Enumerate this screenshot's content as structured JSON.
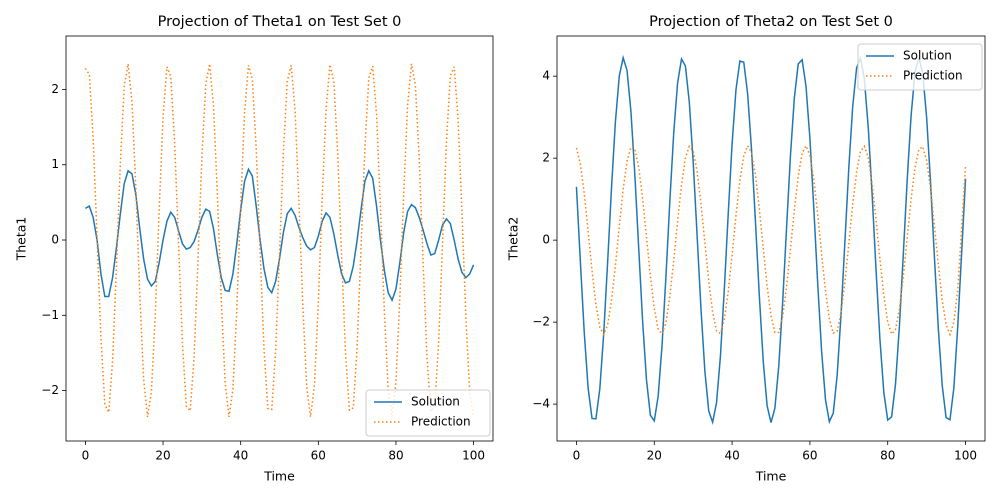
{
  "chart_data": [
    {
      "type": "line",
      "title": "Projection of Theta1 on Test Set 0",
      "x_label": "Time",
      "y_label": "Theta1",
      "x": [
        0,
        1,
        2,
        3,
        4,
        5,
        6,
        7,
        8,
        9,
        10,
        11,
        12,
        13,
        14,
        15,
        16,
        17,
        18,
        19,
        20,
        21,
        22,
        23,
        24,
        25,
        26,
        27,
        28,
        29,
        30,
        31,
        32,
        33,
        34,
        35,
        36,
        37,
        38,
        39,
        40,
        41,
        42,
        43,
        44,
        45,
        46,
        47,
        48,
        49,
        50,
        51,
        52,
        53,
        54,
        55,
        56,
        57,
        58,
        59,
        60,
        61,
        62,
        63,
        64,
        65,
        66,
        67,
        68,
        69,
        70,
        71,
        72,
        73,
        74,
        75,
        76,
        77,
        78,
        79,
        80,
        81,
        82,
        83,
        84,
        85,
        86,
        87,
        88,
        89,
        90,
        91,
        92,
        93,
        94,
        95,
        96,
        97,
        98,
        99,
        100
      ],
      "series": [
        {
          "name": "Solution",
          "color": "#1f77b4",
          "linestyle": "solid",
          "values": [
            0.42,
            0.45,
            0.3,
            0.0,
            -0.45,
            -0.75,
            -0.75,
            -0.5,
            -0.1,
            0.35,
            0.75,
            0.92,
            0.88,
            0.6,
            0.15,
            -0.25,
            -0.52,
            -0.61,
            -0.55,
            -0.3,
            0.0,
            0.25,
            0.37,
            0.3,
            0.12,
            -0.05,
            -0.12,
            -0.1,
            -0.02,
            0.13,
            0.3,
            0.41,
            0.38,
            0.15,
            -0.2,
            -0.5,
            -0.67,
            -0.68,
            -0.45,
            -0.05,
            0.4,
            0.78,
            0.94,
            0.85,
            0.45,
            0.0,
            -0.38,
            -0.63,
            -0.7,
            -0.55,
            -0.25,
            0.1,
            0.35,
            0.42,
            0.33,
            0.17,
            0.03,
            -0.08,
            -0.13,
            -0.1,
            0.05,
            0.25,
            0.36,
            0.3,
            0.08,
            -0.2,
            -0.45,
            -0.57,
            -0.55,
            -0.35,
            0.0,
            0.4,
            0.78,
            0.92,
            0.82,
            0.45,
            0.0,
            -0.4,
            -0.7,
            -0.8,
            -0.65,
            -0.3,
            0.1,
            0.38,
            0.47,
            0.43,
            0.3,
            0.13,
            -0.05,
            -0.2,
            -0.18,
            0.0,
            0.2,
            0.28,
            0.22,
            0.0,
            -0.25,
            -0.43,
            -0.5,
            -0.45,
            -0.33
          ]
        },
        {
          "name": "Prediction",
          "color": "#ff7f0e",
          "linestyle": "dotted",
          "values": [
            2.28,
            2.2,
            1.35,
            0.03,
            -1.31,
            -2.18,
            -2.29,
            -1.61,
            -0.36,
            1.02,
            2.04,
            2.34,
            1.83,
            0.68,
            -0.71,
            -1.85,
            -2.35,
            -2.02,
            -0.99,
            0.39,
            1.63,
            2.3,
            2.17,
            1.28,
            -0.06,
            -1.37,
            -2.21,
            -2.27,
            -1.55,
            -0.28,
            1.09,
            2.07,
            2.34,
            1.78,
            0.6,
            -0.79,
            -1.9,
            -2.35,
            -1.98,
            -0.92,
            0.47,
            1.69,
            2.32,
            2.14,
            1.21,
            -0.14,
            -1.44,
            -2.24,
            -2.25,
            -1.48,
            -0.19,
            1.16,
            2.11,
            2.32,
            1.73,
            0.52,
            -0.86,
            -1.95,
            -2.35,
            -1.93,
            -0.84,
            0.55,
            1.74,
            2.33,
            2.1,
            1.14,
            -0.22,
            -1.5,
            -2.26,
            -2.23,
            -1.42,
            -0.11,
            1.23,
            2.15,
            2.31,
            1.67,
            0.44,
            -0.94,
            -1.99,
            -2.35,
            -1.88,
            -0.76,
            0.62,
            1.79,
            2.34,
            2.06,
            1.07,
            -0.3,
            -1.56,
            -2.28,
            -2.2,
            -1.36,
            -0.03,
            1.3,
            2.18,
            2.3,
            1.61,
            0.36,
            -1.01,
            -2.03,
            -2.34
          ]
        }
      ],
      "xlim": [
        -5,
        105
      ],
      "ylim": [
        -2.67,
        2.71
      ],
      "xticks": [
        0,
        20,
        40,
        60,
        80,
        100
      ],
      "yticks": [
        {
          "value": -2,
          "label": "−2"
        },
        {
          "value": -1,
          "label": "−1"
        },
        0,
        1,
        2
      ],
      "grid": false,
      "legend": "lower right"
    },
    {
      "type": "line",
      "title": "Projection of Theta2 on Test Set 0",
      "x_label": "Time",
      "y_label": "Theta2",
      "x": [
        0,
        1,
        2,
        3,
        4,
        5,
        6,
        7,
        8,
        9,
        10,
        11,
        12,
        13,
        14,
        15,
        16,
        17,
        18,
        19,
        20,
        21,
        22,
        23,
        24,
        25,
        26,
        27,
        28,
        29,
        30,
        31,
        32,
        33,
        34,
        35,
        36,
        37,
        38,
        39,
        40,
        41,
        42,
        43,
        44,
        45,
        46,
        47,
        48,
        49,
        50,
        51,
        52,
        53,
        54,
        55,
        56,
        57,
        58,
        59,
        60,
        61,
        62,
        63,
        64,
        65,
        66,
        67,
        68,
        69,
        70,
        71,
        72,
        73,
        74,
        75,
        76,
        77,
        78,
        79,
        80,
        81,
        82,
        83,
        84,
        85,
        86,
        87,
        88,
        89,
        90,
        91,
        92,
        93,
        94,
        95,
        96,
        97,
        98,
        99,
        100
      ],
      "series": [
        {
          "name": "Solution",
          "color": "#1f77b4",
          "linestyle": "solid",
          "values": [
            1.3,
            -0.52,
            -2.25,
            -3.61,
            -4.35,
            -4.36,
            -3.63,
            -2.29,
            -0.56,
            1.26,
            2.87,
            4.0,
            4.45,
            4.14,
            3.14,
            1.61,
            -0.2,
            -1.97,
            -3.41,
            -4.27,
            -4.41,
            -3.81,
            -2.57,
            -0.88,
            0.95,
            2.62,
            3.84,
            4.42,
            4.25,
            3.37,
            1.91,
            0.13,
            -1.67,
            -3.19,
            -4.17,
            -4.44,
            -3.97,
            -2.83,
            -1.2,
            0.63,
            2.35,
            3.67,
            4.37,
            4.34,
            3.57,
            2.2,
            0.46,
            -1.36,
            -2.95,
            -4.04,
            -4.45,
            -4.1,
            -3.07,
            -1.51,
            0.3,
            2.06,
            3.47,
            4.3,
            4.4,
            3.75,
            2.48,
            0.78,
            -1.05,
            -2.7,
            -3.89,
            -4.43,
            -4.22,
            -3.3,
            -1.81,
            -0.03,
            1.77,
            3.26,
            4.2,
            4.44,
            3.92,
            2.74,
            1.1,
            -0.73,
            -2.43,
            -3.72,
            -4.39,
            -4.31,
            -3.51,
            -2.1,
            -0.35,
            1.46,
            3.03,
            4.08,
            4.45,
            4.06,
            2.99,
            1.41,
            -0.41,
            -2.15,
            -3.54,
            -4.33,
            -4.38,
            -3.6,
            -2.1,
            -0.3,
            1.5
          ]
        },
        {
          "name": "Prediction",
          "color": "#ff7f0e",
          "linestyle": "dotted",
          "values": [
            2.25,
            1.86,
            1.14,
            0.22,
            -0.74,
            -1.57,
            -2.12,
            -2.3,
            -2.07,
            -1.48,
            -0.63,
            0.33,
            1.24,
            1.93,
            2.27,
            2.22,
            1.78,
            1.02,
            0.08,
            -0.87,
            -1.67,
            -2.17,
            -2.29,
            -2.01,
            -1.37,
            -0.5,
            0.47,
            1.35,
            2.0,
            2.29,
            2.18,
            1.68,
            0.89,
            -0.06,
            -0.99,
            -1.76,
            -2.21,
            -2.28,
            -1.94,
            -1.26,
            -0.36,
            0.6,
            1.46,
            2.06,
            2.3,
            2.13,
            1.59,
            0.76,
            -0.19,
            -1.12,
            -1.84,
            -2.25,
            -2.25,
            -1.86,
            -1.14,
            -0.22,
            0.74,
            1.57,
            2.12,
            2.3,
            2.07,
            1.48,
            0.63,
            -0.33,
            -1.24,
            -1.92,
            -2.27,
            -2.22,
            -1.78,
            -1.02,
            -0.08,
            0.87,
            1.66,
            2.17,
            2.29,
            2.01,
            1.37,
            0.5,
            -0.47,
            -1.35,
            -2.0,
            -2.29,
            -2.18,
            -1.68,
            -0.89,
            0.05,
            0.99,
            1.76,
            2.21,
            2.28,
            1.94,
            1.26,
            0.36,
            -0.6,
            -1.46,
            -2.06,
            -2.3,
            -2.0,
            -1.2,
            0.3,
            1.8
          ]
        }
      ],
      "xlim": [
        -5,
        105
      ],
      "ylim": [
        -4.9,
        4.98
      ],
      "xticks": [
        0,
        20,
        40,
        60,
        80,
        100
      ],
      "yticks": [
        {
          "value": -4,
          "label": "−4"
        },
        {
          "value": -2,
          "label": "−2"
        },
        0,
        2,
        4
      ],
      "grid": false,
      "legend": "upper right"
    }
  ]
}
